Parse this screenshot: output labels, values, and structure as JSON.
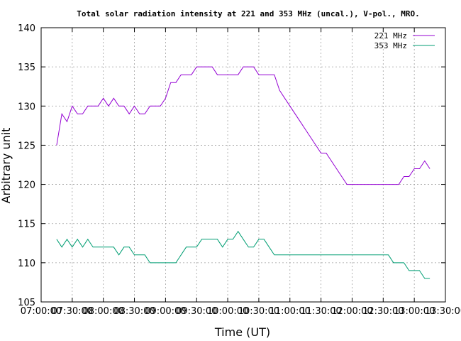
{
  "chart_data": {
    "type": "line",
    "title": "Total solar radiation intensity at 221 and 353 MHz (uncal.), V-pol., MRO.",
    "xlabel": "Time (UT)",
    "ylabel": "Arbitrary unit",
    "xlim": [
      "07:00:00",
      "13:30:00"
    ],
    "ylim": [
      105,
      140
    ],
    "x_ticks": [
      "07:00:00",
      "07:30:00",
      "08:00:00",
      "08:30:00",
      "09:00:00",
      "09:30:00",
      "10:00:00",
      "10:30:00",
      "11:00:00",
      "11:30:00",
      "12:00:00",
      "12:30:00",
      "13:00:00",
      "13:30:00"
    ],
    "y_ticks": [
      105,
      110,
      115,
      120,
      125,
      130,
      135,
      140
    ],
    "grid": true,
    "legend_position": "top-right",
    "series": [
      {
        "name": "221 MHz",
        "color": "#9400d3",
        "points": [
          [
            "07:15:00",
            125
          ],
          [
            "07:20:00",
            129
          ],
          [
            "07:25:00",
            128
          ],
          [
            "07:30:00",
            130
          ],
          [
            "07:35:00",
            129
          ],
          [
            "07:40:00",
            129
          ],
          [
            "07:45:00",
            130
          ],
          [
            "07:50:00",
            130
          ],
          [
            "07:55:00",
            130
          ],
          [
            "08:00:00",
            131
          ],
          [
            "08:05:00",
            130
          ],
          [
            "08:10:00",
            131
          ],
          [
            "08:15:00",
            130
          ],
          [
            "08:20:00",
            130
          ],
          [
            "08:25:00",
            129
          ],
          [
            "08:30:00",
            130
          ],
          [
            "08:35:00",
            129
          ],
          [
            "08:40:00",
            129
          ],
          [
            "08:45:00",
            130
          ],
          [
            "08:50:00",
            130
          ],
          [
            "08:55:00",
            130
          ],
          [
            "09:00:00",
            131
          ],
          [
            "09:05:00",
            133
          ],
          [
            "09:10:00",
            133
          ],
          [
            "09:15:00",
            134
          ],
          [
            "09:20:00",
            134
          ],
          [
            "09:25:00",
            134
          ],
          [
            "09:30:00",
            135
          ],
          [
            "09:35:00",
            135
          ],
          [
            "09:40:00",
            135
          ],
          [
            "09:45:00",
            135
          ],
          [
            "09:50:00",
            134
          ],
          [
            "09:55:00",
            134
          ],
          [
            "10:00:00",
            134
          ],
          [
            "10:05:00",
            134
          ],
          [
            "10:10:00",
            134
          ],
          [
            "10:15:00",
            135
          ],
          [
            "10:20:00",
            135
          ],
          [
            "10:25:00",
            135
          ],
          [
            "10:30:00",
            134
          ],
          [
            "10:35:00",
            134
          ],
          [
            "10:40:00",
            134
          ],
          [
            "10:45:00",
            134
          ],
          [
            "10:50:00",
            132
          ],
          [
            "10:55:00",
            131
          ],
          [
            "11:00:00",
            130
          ],
          [
            "11:05:00",
            129
          ],
          [
            "11:10:00",
            128
          ],
          [
            "11:15:00",
            127
          ],
          [
            "11:20:00",
            126
          ],
          [
            "11:25:00",
            125
          ],
          [
            "11:30:00",
            124
          ],
          [
            "11:35:00",
            124
          ],
          [
            "11:40:00",
            123
          ],
          [
            "11:45:00",
            122
          ],
          [
            "11:50:00",
            121
          ],
          [
            "11:55:00",
            120
          ],
          [
            "12:00:00",
            120
          ],
          [
            "12:05:00",
            120
          ],
          [
            "12:10:00",
            120
          ],
          [
            "12:15:00",
            120
          ],
          [
            "12:20:00",
            120
          ],
          [
            "12:25:00",
            120
          ],
          [
            "12:30:00",
            120
          ],
          [
            "12:35:00",
            120
          ],
          [
            "12:40:00",
            120
          ],
          [
            "12:45:00",
            120
          ],
          [
            "12:50:00",
            121
          ],
          [
            "12:55:00",
            121
          ],
          [
            "13:00:00",
            122
          ],
          [
            "13:05:00",
            122
          ],
          [
            "13:10:00",
            123
          ],
          [
            "13:15:00",
            122
          ]
        ]
      },
      {
        "name": "353 MHz",
        "color": "#009e73",
        "points": [
          [
            "07:15:00",
            113
          ],
          [
            "07:20:00",
            112
          ],
          [
            "07:25:00",
            113
          ],
          [
            "07:30:00",
            112
          ],
          [
            "07:35:00",
            113
          ],
          [
            "07:40:00",
            112
          ],
          [
            "07:45:00",
            113
          ],
          [
            "07:50:00",
            112
          ],
          [
            "07:55:00",
            112
          ],
          [
            "08:00:00",
            112
          ],
          [
            "08:05:00",
            112
          ],
          [
            "08:10:00",
            112
          ],
          [
            "08:15:00",
            111
          ],
          [
            "08:20:00",
            112
          ],
          [
            "08:25:00",
            112
          ],
          [
            "08:30:00",
            111
          ],
          [
            "08:35:00",
            111
          ],
          [
            "08:40:00",
            111
          ],
          [
            "08:45:00",
            110
          ],
          [
            "08:50:00",
            110
          ],
          [
            "08:55:00",
            110
          ],
          [
            "09:00:00",
            110
          ],
          [
            "09:05:00",
            110
          ],
          [
            "09:10:00",
            110
          ],
          [
            "09:15:00",
            111
          ],
          [
            "09:20:00",
            112
          ],
          [
            "09:25:00",
            112
          ],
          [
            "09:30:00",
            112
          ],
          [
            "09:35:00",
            113
          ],
          [
            "09:40:00",
            113
          ],
          [
            "09:45:00",
            113
          ],
          [
            "09:50:00",
            113
          ],
          [
            "09:55:00",
            112
          ],
          [
            "10:00:00",
            113
          ],
          [
            "10:05:00",
            113
          ],
          [
            "10:10:00",
            114
          ],
          [
            "10:15:00",
            113
          ],
          [
            "10:20:00",
            112
          ],
          [
            "10:25:00",
            112
          ],
          [
            "10:30:00",
            113
          ],
          [
            "10:35:00",
            113
          ],
          [
            "10:40:00",
            112
          ],
          [
            "10:45:00",
            111
          ],
          [
            "10:50:00",
            111
          ],
          [
            "10:55:00",
            111
          ],
          [
            "11:00:00",
            111
          ],
          [
            "11:05:00",
            111
          ],
          [
            "11:10:00",
            111
          ],
          [
            "11:15:00",
            111
          ],
          [
            "11:20:00",
            111
          ],
          [
            "11:25:00",
            111
          ],
          [
            "11:30:00",
            111
          ],
          [
            "11:35:00",
            111
          ],
          [
            "11:40:00",
            111
          ],
          [
            "11:45:00",
            111
          ],
          [
            "11:50:00",
            111
          ],
          [
            "11:55:00",
            111
          ],
          [
            "12:00:00",
            111
          ],
          [
            "12:05:00",
            111
          ],
          [
            "12:10:00",
            111
          ],
          [
            "12:15:00",
            111
          ],
          [
            "12:20:00",
            111
          ],
          [
            "12:25:00",
            111
          ],
          [
            "12:30:00",
            111
          ],
          [
            "12:35:00",
            111
          ],
          [
            "12:40:00",
            110
          ],
          [
            "12:45:00",
            110
          ],
          [
            "12:50:00",
            110
          ],
          [
            "12:55:00",
            109
          ],
          [
            "13:00:00",
            109
          ],
          [
            "13:05:00",
            109
          ],
          [
            "13:10:00",
            108
          ],
          [
            "13:15:00",
            108
          ]
        ]
      }
    ]
  }
}
